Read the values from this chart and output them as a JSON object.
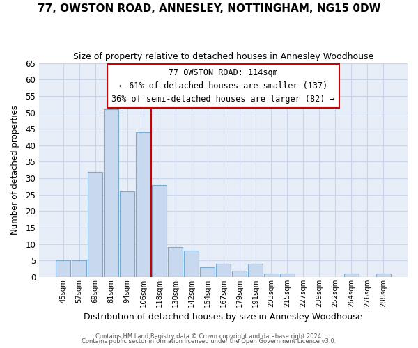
{
  "title": "77, OWSTON ROAD, ANNESLEY, NOTTINGHAM, NG15 0DW",
  "subtitle": "Size of property relative to detached houses in Annesley Woodhouse",
  "xlabel": "Distribution of detached houses by size in Annesley Woodhouse",
  "ylabel": "Number of detached properties",
  "categories": [
    "45sqm",
    "57sqm",
    "69sqm",
    "81sqm",
    "94sqm",
    "106sqm",
    "118sqm",
    "130sqm",
    "142sqm",
    "154sqm",
    "167sqm",
    "179sqm",
    "191sqm",
    "203sqm",
    "215sqm",
    "227sqm",
    "239sqm",
    "252sqm",
    "264sqm",
    "276sqm",
    "288sqm"
  ],
  "values": [
    5,
    5,
    32,
    51,
    26,
    44,
    28,
    9,
    8,
    3,
    4,
    2,
    4,
    1,
    1,
    0,
    0,
    0,
    1,
    0,
    1
  ],
  "bar_color": "#c8d8ee",
  "bar_edge_color": "#7aaad0",
  "vline_color": "#cc0000",
  "vline_bin_index": 6,
  "annotation_text": "77 OWSTON ROAD: 114sqm\n← 61% of detached houses are smaller (137)\n36% of semi-detached houses are larger (82) →",
  "annotation_box_color": "#ffffff",
  "annotation_box_edge": "#cc0000",
  "ylim": [
    0,
    65
  ],
  "yticks": [
    0,
    5,
    10,
    15,
    20,
    25,
    30,
    35,
    40,
    45,
    50,
    55,
    60,
    65
  ],
  "grid_color": "#c8d4e8",
  "plot_bg_color": "#e8eef8",
  "fig_bg_color": "#ffffff",
  "title_fontsize": 11,
  "subtitle_fontsize": 9,
  "footer1": "Contains HM Land Registry data © Crown copyright and database right 2024.",
  "footer2": "Contains public sector information licensed under the Open Government Licence v3.0."
}
